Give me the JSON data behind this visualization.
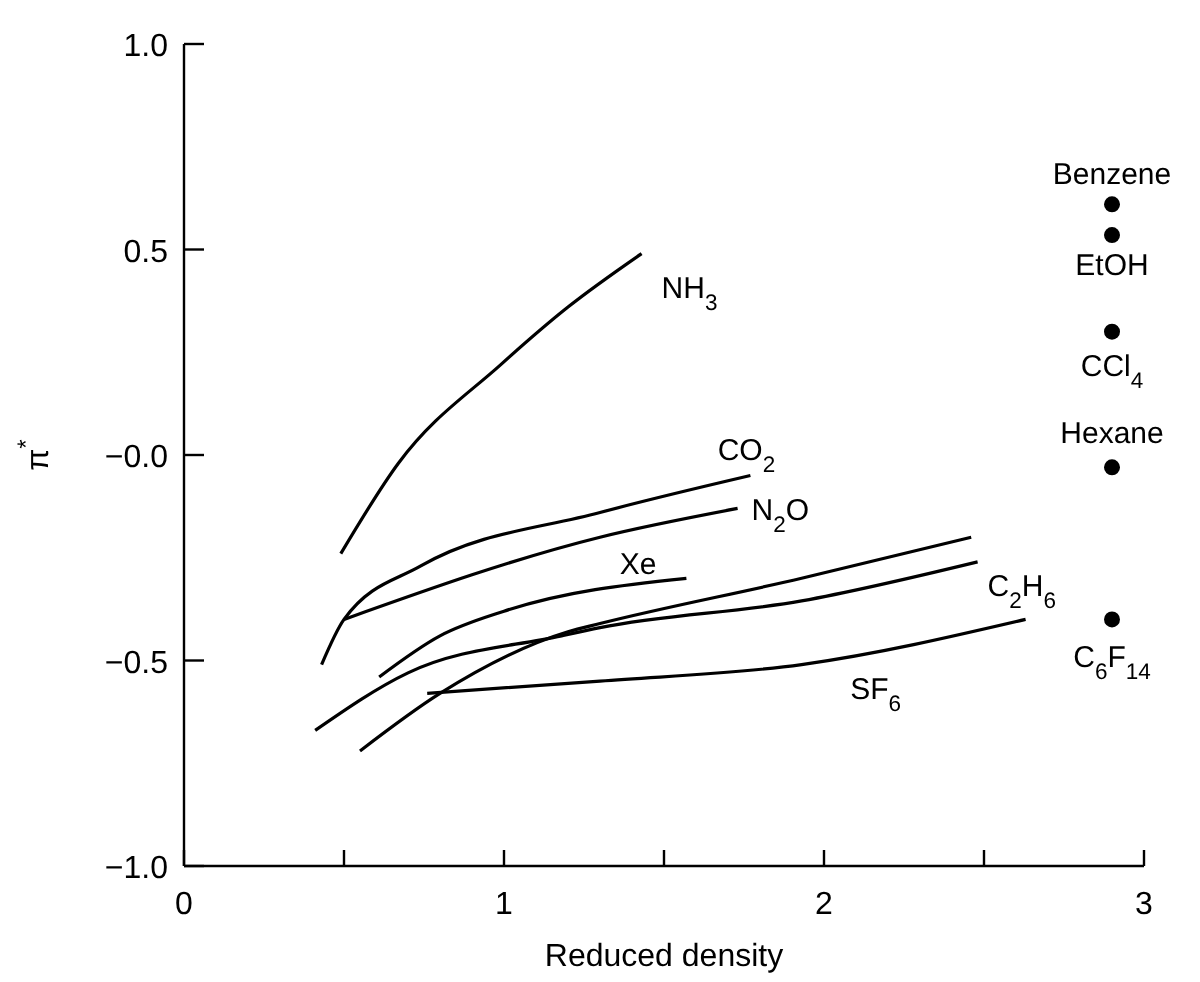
{
  "chart_data": {
    "type": "line",
    "xlabel": "Reduced density",
    "ylabel": "π$^{*}$",
    "xlim": [
      0,
      3
    ],
    "ylim": [
      -1,
      1
    ],
    "xticks": [
      0,
      {
        "value": 0.5,
        "label": null
      },
      1,
      {
        "value": 1.5,
        "label": null
      },
      2,
      {
        "value": 2.5,
        "label": null
      },
      3
    ],
    "yticks": [
      {
        "value": -1,
        "label": "−1.0"
      },
      {
        "value": -0.5,
        "label": "−0.5"
      },
      {
        "value": 0,
        "label": "−0.0"
      },
      {
        "value": 0.5,
        "label": "0.5"
      },
      {
        "value": 1,
        "label": "1.0"
      }
    ],
    "grid": false,
    "marker": "none",
    "line_style": "solid",
    "series": [
      {
        "name": "NH$_{3}$",
        "color": "#000000",
        "x": [
          0.49,
          0.67,
          0.99,
          1.2,
          1.43
        ],
        "values": [
          -0.24,
          -0.02,
          0.22,
          0.36,
          0.49
        ]
      },
      {
        "name": "CO$_{2}$",
        "color": "#000000",
        "x": [
          0.43,
          0.5,
          0.74,
          1.3,
          1.77
        ],
        "values": [
          -0.51,
          -0.4,
          -0.27,
          -0.14,
          -0.05
        ]
      },
      {
        "name": "N$_{2}$O",
        "color": "#000000",
        "x": [
          0.5,
          1.3,
          1.73
        ],
        "values": [
          -0.4,
          -0.2,
          -0.13
        ]
      },
      {
        "name": "Xe",
        "color": "#000000",
        "x": [
          0.61,
          0.8,
          1.0,
          1.57
        ],
        "values": [
          -0.54,
          -0.44,
          -0.38,
          -0.3
        ]
      },
      {
        "color": "#000000",
        "x": [
          0.55,
          0.8,
          1.2,
          1.3,
          1.93,
          2.46
        ],
        "values": [
          -0.72,
          -0.58,
          -0.43,
          -0.41,
          -0.3,
          -0.2
        ]
      },
      {
        "name": "C$_{2}$H$_{6}$",
        "color": "#000000",
        "x": [
          0.41,
          0.7,
          1.18,
          1.3,
          1.93,
          2.48
        ],
        "values": [
          -0.67,
          -0.53,
          -0.44,
          -0.42,
          -0.355,
          -0.26
        ]
      },
      {
        "name": "SF$_{6}$",
        "color": "#000000",
        "x": [
          0.76,
          1.3,
          1.93,
          2.63
        ],
        "values": [
          -0.58,
          -0.55,
          -0.51,
          -0.4
        ]
      },
      {
        "type": "scatter",
        "marker": "circle",
        "name": "Benzene",
        "color": "#000000",
        "x": [
          2.9
        ],
        "values": [
          0.61
        ]
      },
      {
        "type": "scatter",
        "marker": "circle",
        "name": "EtOH",
        "color": "#000000",
        "x": [
          2.9
        ],
        "values": [
          0.535
        ]
      },
      {
        "type": "scatter",
        "marker": "circle",
        "name": "CCl$_{4}$",
        "color": "#000000",
        "x": [
          2.9
        ],
        "values": [
          0.3
        ]
      },
      {
        "type": "scatter",
        "marker": "circle",
        "name": "Hexane",
        "color": "#000000",
        "x": [
          2.9
        ],
        "values": [
          -0.03
        ]
      },
      {
        "type": "scatter",
        "marker": "circle",
        "name": "C$_{6}$F$_{14}$",
        "color": "#000000",
        "x": [
          2.9
        ],
        "values": [
          -0.4
        ]
      }
    ]
  }
}
